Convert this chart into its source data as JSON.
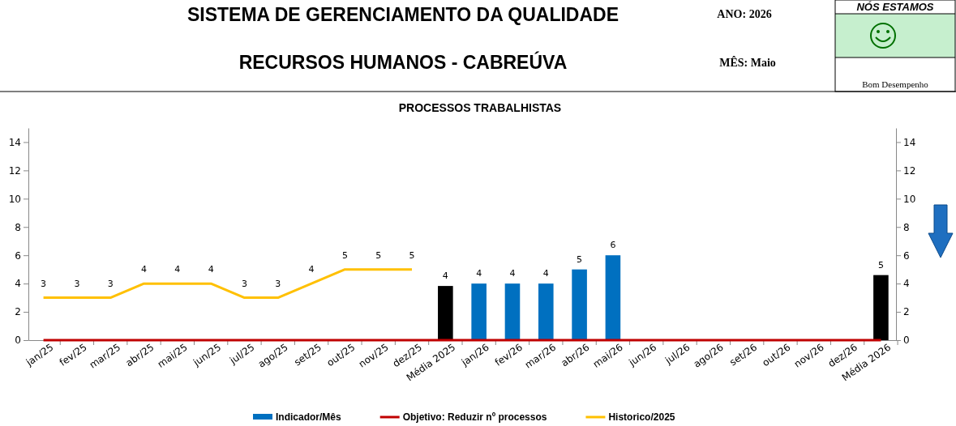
{
  "chart_data": {
    "type": "bar",
    "title": "PROCESSOS TRABALHISTAS",
    "annotations": [
      "SISTEMA DE GERENCIAMENTO DA QUALIDADE",
      "RECURSOS HUMANOS - CABREÚVA",
      "ANO: 2026",
      "MÊS: Maio",
      "NÓS ESTAMOS",
      "Bom Desempenho"
    ],
    "categories": [
      "jan/25",
      "fev/25",
      "mar/25",
      "abr/25",
      "mai/25",
      "jun/25",
      "jul/25",
      "ago/25",
      "set/25",
      "out/25",
      "nov/25",
      "dez/25",
      "Média 2025",
      "jan/26",
      "fev/26",
      "mar/26",
      "abr/26",
      "mai/26",
      "jun/26",
      "jul/26",
      "ago/26",
      "set/26",
      "out/26",
      "nov/26",
      "dez/26",
      "Média 2026"
    ],
    "series": [
      {
        "name": "Indicador/Mês",
        "color": "#0070c0",
        "colors": [
          null,
          null,
          null,
          null,
          null,
          null,
          null,
          null,
          null,
          null,
          null,
          null,
          "#000000",
          "#0070c0",
          "#0070c0",
          "#0070c0",
          "#0070c0",
          "#0070c0",
          null,
          null,
          null,
          null,
          null,
          null,
          null,
          "#000000"
        ],
        "values": [
          null,
          null,
          null,
          null,
          null,
          null,
          null,
          null,
          null,
          null,
          null,
          null,
          3.83,
          4,
          4,
          4,
          5,
          6,
          null,
          null,
          null,
          null,
          null,
          null,
          null,
          4.6
        ],
        "value_labels": [
          null,
          null,
          null,
          null,
          null,
          null,
          null,
          null,
          null,
          null,
          null,
          null,
          "4",
          "4",
          "4",
          "4",
          "5",
          "6",
          null,
          null,
          null,
          null,
          null,
          null,
          null,
          "5"
        ]
      },
      {
        "name": "Objetivo: Reduzir nº processos",
        "type": "line",
        "color": "#c00000",
        "values": [
          0,
          0,
          0,
          0,
          0,
          0,
          0,
          0,
          0,
          0,
          0,
          0,
          0,
          0,
          0,
          0,
          0,
          0,
          0,
          0,
          0,
          0,
          0,
          0,
          0,
          0
        ]
      },
      {
        "name": "Historico/2025",
        "type": "line",
        "color": "#ffc000",
        "values": [
          3,
          3,
          3,
          4,
          4,
          4,
          3,
          3,
          4,
          5,
          5,
          5,
          null,
          null,
          null,
          null,
          null,
          null,
          null,
          null,
          null,
          null,
          null,
          null,
          null,
          null
        ],
        "value_labels": [
          "3",
          "3",
          "3",
          "4",
          "4",
          "4",
          "3",
          "3",
          "4",
          "5",
          "5",
          "5",
          null,
          null,
          null,
          null,
          null,
          null,
          null,
          null,
          null,
          null,
          null,
          null,
          null,
          null
        ]
      }
    ],
    "ylim": [
      0,
      15
    ],
    "yticks": [
      0,
      2,
      4,
      6,
      8,
      10,
      12,
      14
    ],
    "y2lim": [
      0,
      15
    ],
    "y2ticks": [
      0,
      2,
      4,
      6,
      8,
      10,
      12,
      14
    ],
    "legend": "bottom"
  }
}
